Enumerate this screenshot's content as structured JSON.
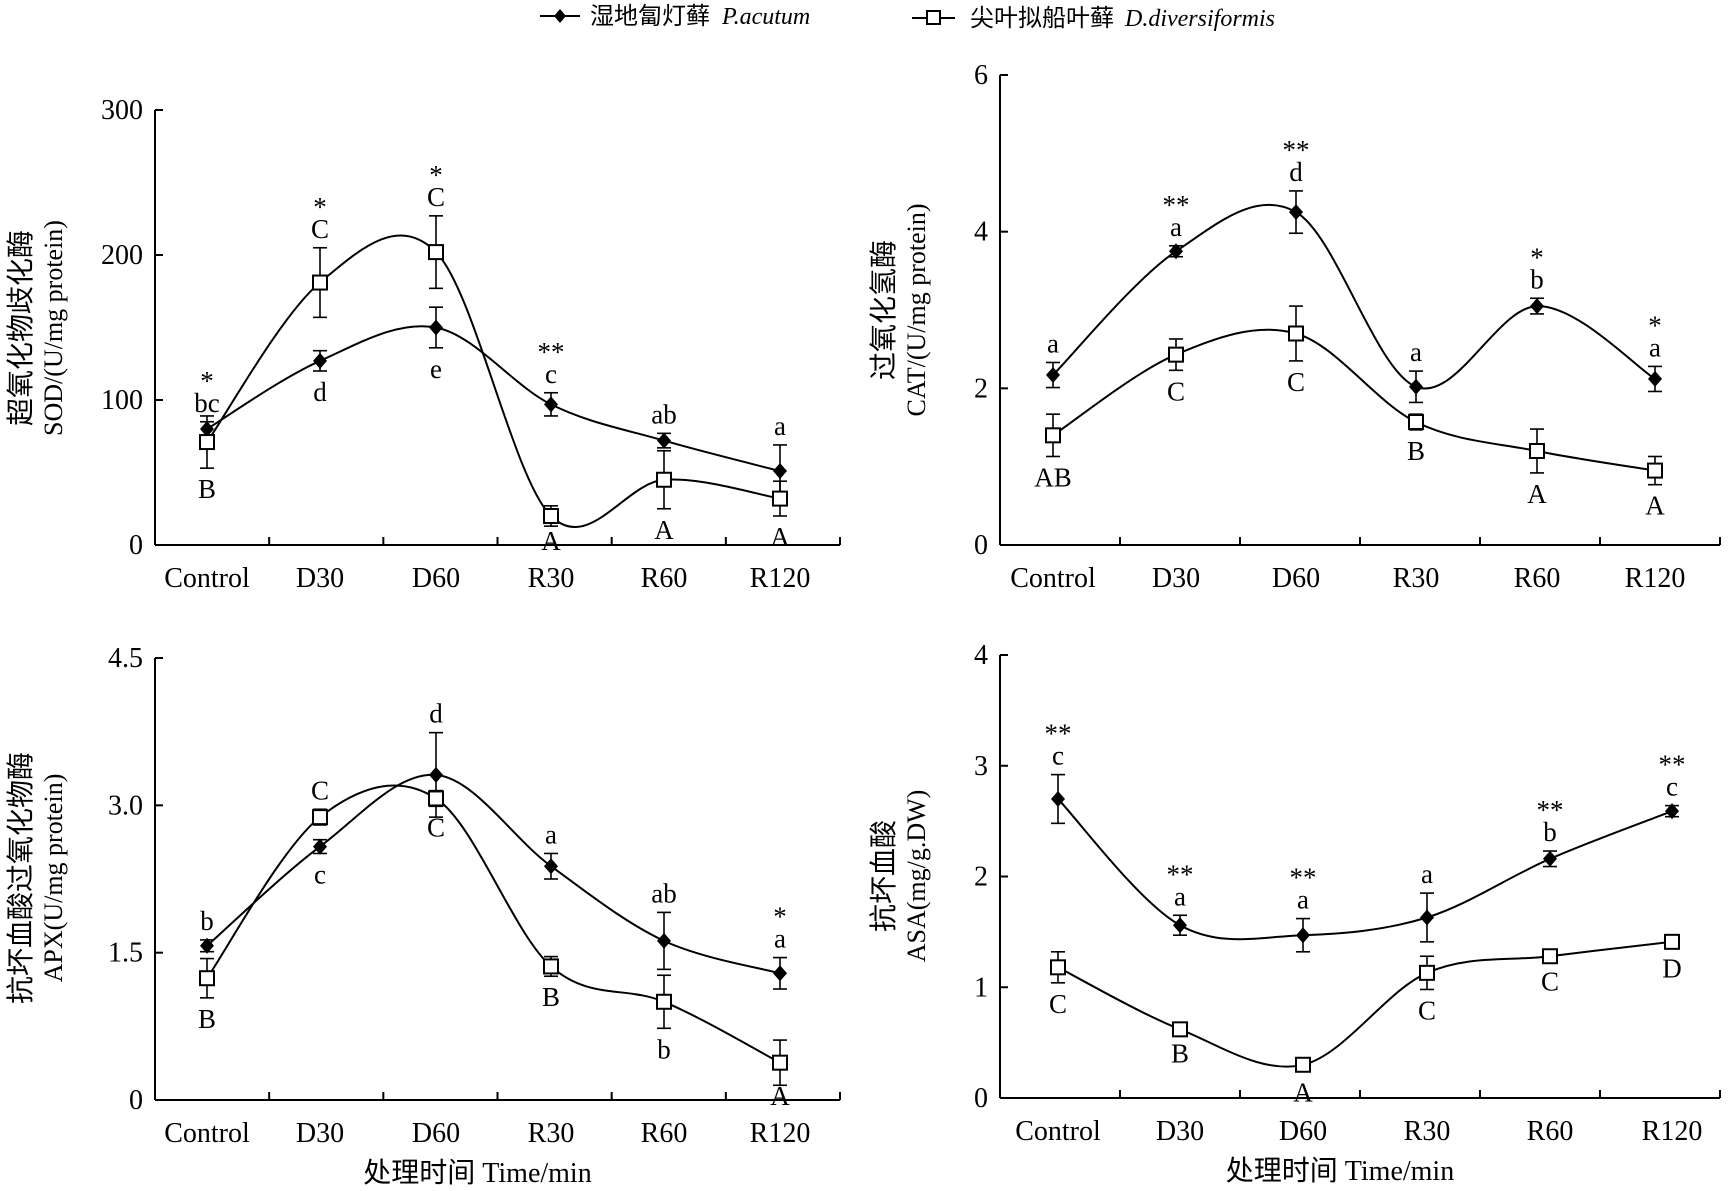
{
  "legend": {
    "series_a_label": "湿地匐灯藓",
    "series_a_italic": "P.acutum",
    "series_b_label": "尖叶拟船叶藓",
    "series_b_italic": "D.diversiformis"
  },
  "chart_data": [
    {
      "type": "line",
      "panel": "top-left",
      "ylabel_cn": "超氧化物歧化酶",
      "ylabel": "SOD/(U/mg protein)",
      "xlabel": "",
      "categories": [
        "Control",
        "D30",
        "D60",
        "R30",
        "R60",
        "R120"
      ],
      "ylim": [
        0,
        300
      ],
      "yticks": [
        0,
        100,
        200,
        300
      ],
      "series": [
        {
          "name": "湿地匐灯藓 P.acutum",
          "marker": "filled-diamond",
          "values": [
            80,
            127,
            150,
            97,
            72,
            51
          ],
          "errors": [
            5,
            7,
            14,
            8,
            5,
            18
          ],
          "letters": [
            "bc",
            "d",
            "e",
            "c",
            "ab",
            "a"
          ]
        },
        {
          "name": "尖叶拟船叶藓 D.diversiformis",
          "marker": "open-square",
          "values": [
            71,
            181,
            202,
            20,
            45,
            32
          ],
          "errors": [
            18,
            24,
            25,
            7,
            20,
            12
          ],
          "letters": [
            "B",
            "C",
            "C",
            "A",
            "A",
            "A"
          ]
        }
      ],
      "significance": [
        "*",
        "*",
        "*",
        "**",
        "",
        ""
      ]
    },
    {
      "type": "line",
      "panel": "top-right",
      "ylabel_cn": "过氧化氢酶",
      "ylabel": "CAT/(U/mg protein)",
      "xlabel": "",
      "categories": [
        "Control",
        "D30",
        "D60",
        "R30",
        "R60",
        "R120"
      ],
      "ylim": [
        0,
        6
      ],
      "yticks": [
        0,
        2,
        4,
        6
      ],
      "series": [
        {
          "name": "湿地匐灯藓 P.acutum",
          "marker": "filled-diamond",
          "values": [
            2.17,
            3.75,
            4.25,
            2.02,
            3.05,
            2.12
          ],
          "errors": [
            0.16,
            0.07,
            0.27,
            0.2,
            0.1,
            0.16
          ],
          "letters": [
            "a",
            "a",
            "d",
            "a",
            "b",
            "a"
          ]
        },
        {
          "name": "尖叶拟船叶藓 D.diversiformis",
          "marker": "open-square",
          "values": [
            1.4,
            2.43,
            2.7,
            1.57,
            1.2,
            0.95
          ],
          "errors": [
            0.27,
            0.2,
            0.35,
            0.1,
            0.28,
            0.18
          ],
          "letters": [
            "AB",
            "C",
            "C",
            "B",
            "A",
            "A"
          ]
        }
      ],
      "significance": [
        "",
        "**",
        "**",
        "",
        "*",
        "*"
      ]
    },
    {
      "type": "line",
      "panel": "bottom-left",
      "ylabel_cn": "抗坏血酸过氧化物酶",
      "ylabel": "APX(U/mg protein)",
      "xlabel": "处理时间 Time/min",
      "categories": [
        "Control",
        "D30",
        "D60",
        "R30",
        "R60",
        "R120"
      ],
      "ylim": [
        0,
        4.5
      ],
      "yticks": [
        0,
        1.5,
        3.0,
        4.5
      ],
      "ytick_labels": [
        "0",
        "1.5",
        "3.0",
        "4.5"
      ],
      "series": [
        {
          "name": "湿地匐灯藓 P.acutum",
          "marker": "filled-diamond",
          "values": [
            1.57,
            2.58,
            3.31,
            2.38,
            1.62,
            1.29
          ],
          "errors": [
            0.06,
            0.07,
            0.43,
            0.13,
            0.29,
            0.16
          ],
          "letters": [
            "b",
            "c",
            "d",
            "a",
            "ab",
            "a"
          ]
        },
        {
          "name": "尖叶拟船叶藓 D.diversiformis",
          "marker": "open-square",
          "values": [
            1.24,
            2.88,
            3.07,
            1.36,
            1.0,
            0.38
          ],
          "errors": [
            0.2,
            0.08,
            0.08,
            0.1,
            0.27,
            0.23
          ],
          "letters": [
            "B",
            "C",
            "C",
            "B",
            "b",
            "A"
          ]
        }
      ],
      "significance": [
        "",
        "",
        "",
        "",
        "",
        "*"
      ]
    },
    {
      "type": "line",
      "panel": "bottom-right",
      "ylabel_cn": "抗坏血酸",
      "ylabel": "ASA(mg/g.DW)",
      "xlabel": "处理时间 Time/min",
      "categories": [
        "Control",
        "D30",
        "D60",
        "R30",
        "R60",
        "R120"
      ],
      "ylim": [
        0,
        4
      ],
      "yticks": [
        0,
        1,
        2,
        3,
        4
      ],
      "series": [
        {
          "name": "湿地匐灯藓 P.acutum",
          "marker": "filled-diamond",
          "values": [
            2.7,
            1.56,
            1.47,
            1.63,
            2.16,
            2.59
          ],
          "errors": [
            0.22,
            0.09,
            0.15,
            0.22,
            0.07,
            0.05
          ],
          "letters": [
            "c",
            "a",
            "a",
            "a",
            "b",
            "c"
          ]
        },
        {
          "name": "尖叶拟船叶藓 D.diversiformis",
          "marker": "open-square",
          "values": [
            1.18,
            0.62,
            0.3,
            1.13,
            1.28,
            1.41
          ],
          "errors": [
            0.14,
            0.03,
            0.06,
            0.15,
            0.04,
            0.05
          ],
          "letters": [
            "C",
            "B",
            "A",
            "C",
            "C",
            "D"
          ]
        }
      ],
      "significance": [
        "**",
        "**",
        "**",
        "",
        "**",
        "**"
      ]
    }
  ]
}
